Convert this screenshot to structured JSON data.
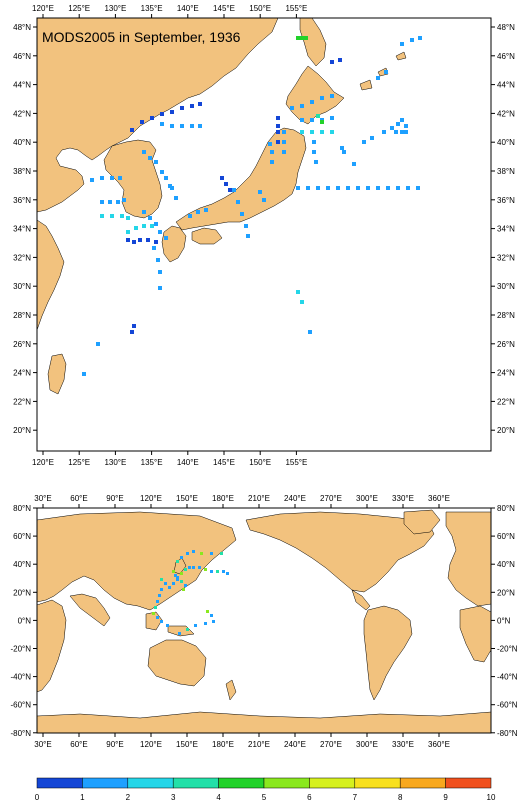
{
  "title": "MODS2005 in September, 1936",
  "colors": {
    "land": "#f2c27e",
    "ocean": "#ffffff",
    "frame": "#000000",
    "obs_default": "#1e7ee8"
  },
  "top_map": {
    "lon_labels": [
      "120°E",
      "125°E",
      "130°E",
      "135°E",
      "140°E",
      "145°E",
      "150°E",
      "155°E"
    ],
    "lat_labels": [
      "48°N",
      "46°N",
      "44°N",
      "42°N",
      "40°N",
      "38°N",
      "36°N",
      "34°N",
      "32°N",
      "30°N",
      "28°N",
      "26°N",
      "24°N",
      "22°N",
      "20°N"
    ]
  },
  "bottom_map": {
    "lon_labels": [
      "30°E",
      "60°E",
      "90°E",
      "120°E",
      "150°E",
      "180°E",
      "210°E",
      "240°E",
      "270°E",
      "300°E",
      "330°E",
      "360°E"
    ],
    "lat_labels": [
      "80°N",
      "60°N",
      "40°N",
      "20°N",
      "0°N",
      "-20°N",
      "-40°N",
      "-60°N",
      "-80°N"
    ]
  },
  "colorbar": {
    "ticks": [
      "0",
      "1",
      "2",
      "3",
      "4",
      "5",
      "6",
      "7",
      "8",
      "9",
      "10"
    ],
    "colors": [
      "#1446d6",
      "#1ea0ff",
      "#24d6e8",
      "#22e0a8",
      "#22d22a",
      "#8ae81e",
      "#d6f01e",
      "#f8e01e",
      "#f8a81e",
      "#f0501e"
    ]
  }
}
